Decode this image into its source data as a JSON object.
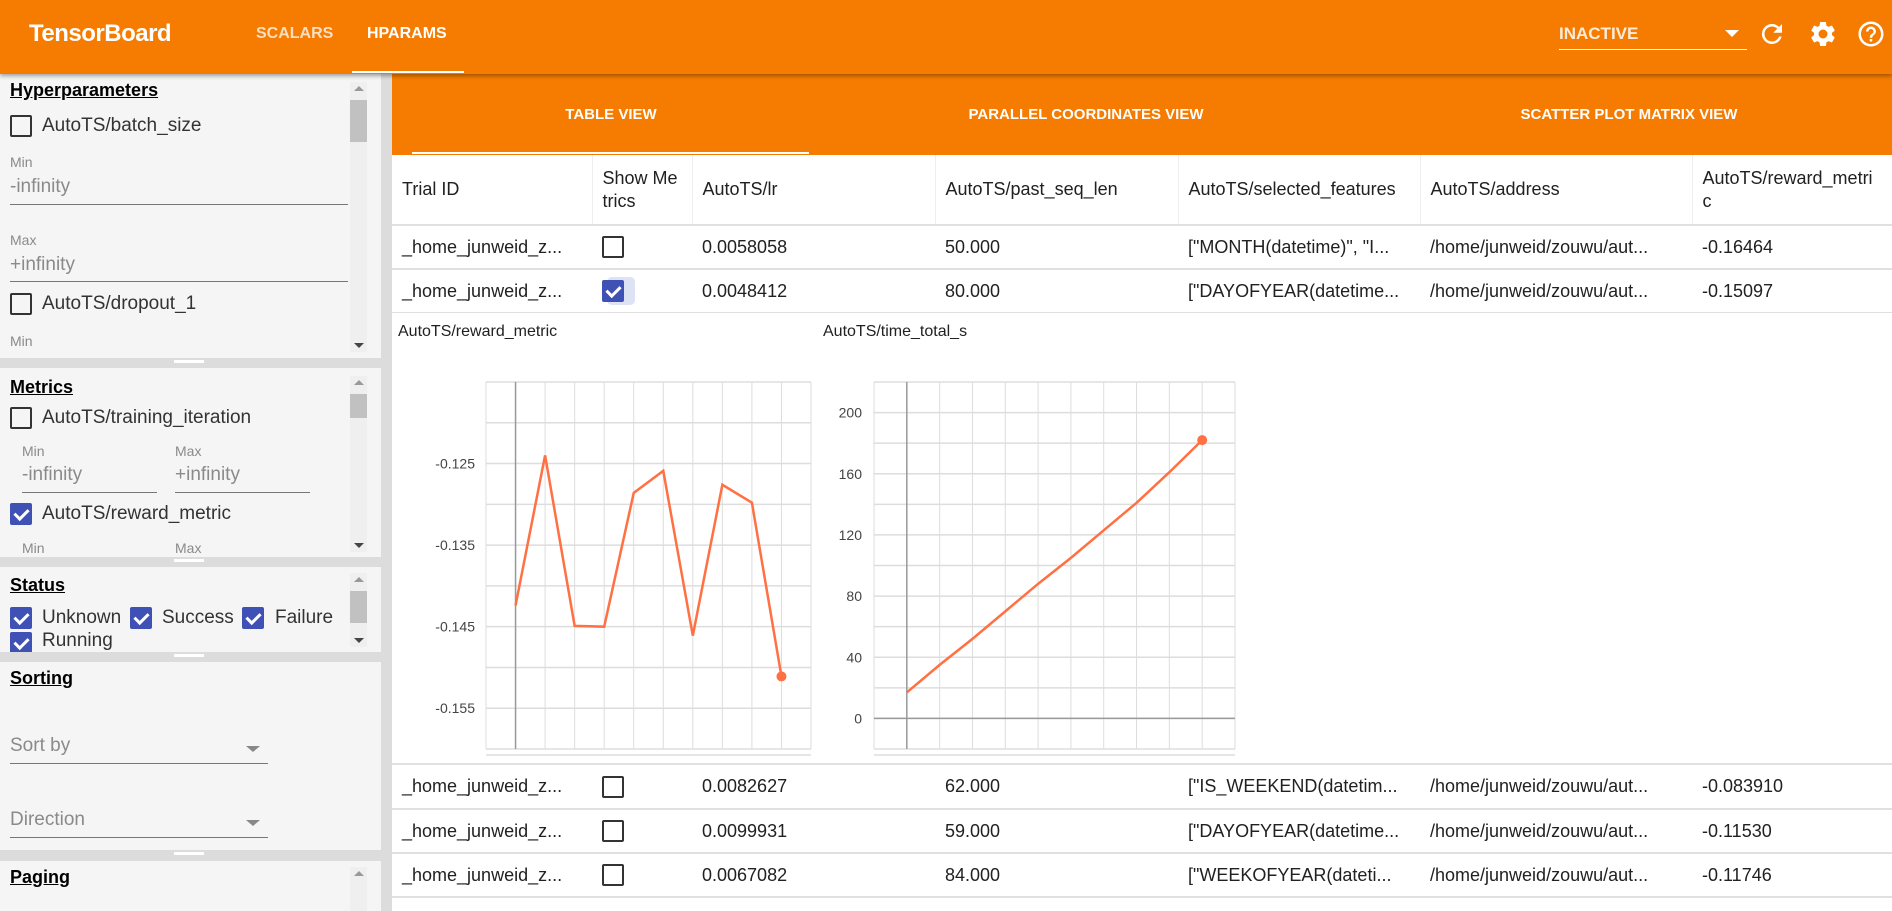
{
  "app": {
    "title": "TensorBoard"
  },
  "nav": {
    "tabs": [
      {
        "label": "SCALARS",
        "active": false
      },
      {
        "label": "HPARAMS",
        "active": true
      }
    ]
  },
  "run_selector": {
    "value": "INACTIVE"
  },
  "toolbar_icons": [
    "refresh-icon",
    "settings-icon",
    "help-icon"
  ],
  "colors": {
    "brand": "#f57c00",
    "checkbox": "#3f51b5",
    "series": "#ff7043",
    "icon_blue": "#2196f3"
  },
  "sidebar": {
    "hyperparameters": {
      "title": "Hyperparameters",
      "items": [
        {
          "label": "AutoTS/batch_size",
          "checked": false,
          "min_label": "Min",
          "min": "-infinity",
          "max_label": "Max",
          "max": "+infinity"
        },
        {
          "label": "AutoTS/dropout_1",
          "checked": false,
          "min_label": "Min"
        }
      ]
    },
    "metrics": {
      "title": "Metrics",
      "items": [
        {
          "label": "AutoTS/training_iteration",
          "checked": false,
          "min_label": "Min",
          "min": "-infinity",
          "max_label": "Max",
          "max": "+infinity"
        },
        {
          "label": "AutoTS/reward_metric",
          "checked": true,
          "min_label": "Min",
          "max_label": "Max"
        }
      ]
    },
    "status": {
      "title": "Status",
      "items": [
        {
          "label": "Unknown",
          "checked": true
        },
        {
          "label": "Success",
          "checked": true
        },
        {
          "label": "Failure",
          "checked": true
        },
        {
          "label": "Running",
          "checked": true
        }
      ]
    },
    "sorting": {
      "title": "Sorting",
      "sort_by_placeholder": "Sort by",
      "direction_placeholder": "Direction"
    },
    "paging": {
      "title": "Paging"
    }
  },
  "view_tabs": [
    {
      "label": "TABLE VIEW",
      "active": true
    },
    {
      "label": "PARALLEL COORDINATES VIEW"
    },
    {
      "label": "SCATTER PLOT MATRIX VIEW"
    }
  ],
  "table": {
    "columns": [
      "Trial ID",
      "Show Metrics",
      "AutoTS/lr",
      "AutoTS/past_seq_len",
      "AutoTS/selected_features",
      "AutoTS/address",
      "AutoTS/reward_metric"
    ],
    "rows": [
      {
        "trial": "_home_junweid_z...",
        "show": false,
        "lr": "0.0058058",
        "past_seq_len": "50.000",
        "features": "[\"MONTH(datetime)\", \"I...",
        "address": "/home/junweid/zouwu/aut...",
        "reward": "-0.16464"
      },
      {
        "trial": "_home_junweid_z...",
        "show": true,
        "lr": "0.0048412",
        "past_seq_len": "80.000",
        "features": "[\"DAYOFYEAR(datetime...",
        "address": "/home/junweid/zouwu/aut...",
        "reward": "-0.15097"
      },
      {
        "trial": "_home_junweid_z...",
        "show": false,
        "lr": "0.0082627",
        "past_seq_len": "62.000",
        "features": "[\"IS_WEEKEND(datetim...",
        "address": "/home/junweid/zouwu/aut...",
        "reward": "-0.083910"
      },
      {
        "trial": "_home_junweid_z...",
        "show": false,
        "lr": "0.0099931",
        "past_seq_len": "59.000",
        "features": "[\"DAYOFYEAR(datetime...",
        "address": "/home/junweid/zouwu/aut...",
        "reward": "-0.11530"
      },
      {
        "trial": "_home_junweid_z...",
        "show": false,
        "lr": "0.0067082",
        "past_seq_len": "84.000",
        "features": "[\"WEEKOFYEAR(dateti...",
        "address": "/home/junweid/zouwu/aut...",
        "reward": "-0.11746"
      }
    ]
  },
  "chart_data": [
    {
      "type": "line",
      "title": "AutoTS/reward_metric",
      "x": [
        0,
        1,
        2,
        3,
        4,
        5,
        6,
        7,
        8,
        9
      ],
      "values": [
        -0.1424,
        -0.124,
        -0.1449,
        -0.145,
        -0.1286,
        -0.1259,
        -0.1461,
        -0.1276,
        -0.1298,
        -0.1511
      ],
      "xlim": [
        -1,
        10
      ],
      "ylim": [
        -0.16,
        -0.115
      ],
      "x_ticks": [
        "0",
        "1",
        "2",
        "3",
        "4",
        "5",
        "6",
        "7",
        "8",
        "9"
      ],
      "y_ticks": [
        "-0.125",
        "-0.135",
        "-0.145",
        "-0.155"
      ],
      "grid": true
    },
    {
      "type": "line",
      "title": "AutoTS/time_total_s",
      "x": [
        0,
        1,
        2,
        3,
        4,
        5,
        6,
        7,
        8,
        9
      ],
      "values": [
        17,
        35,
        52,
        70,
        88,
        105,
        123,
        141,
        161,
        182
      ],
      "xlim": [
        -1,
        10
      ],
      "ylim": [
        -20,
        220
      ],
      "x_ticks": [
        "0",
        "1",
        "2",
        "3",
        "4",
        "5",
        "6",
        "7",
        "8",
        "9"
      ],
      "y_ticks": [
        "0",
        "40",
        "80",
        "120",
        "160",
        "200"
      ],
      "grid": true
    }
  ],
  "chart_icons": [
    "fullscreen-icon",
    "toggle-log-scale-icon",
    "fit-domain-icon"
  ]
}
